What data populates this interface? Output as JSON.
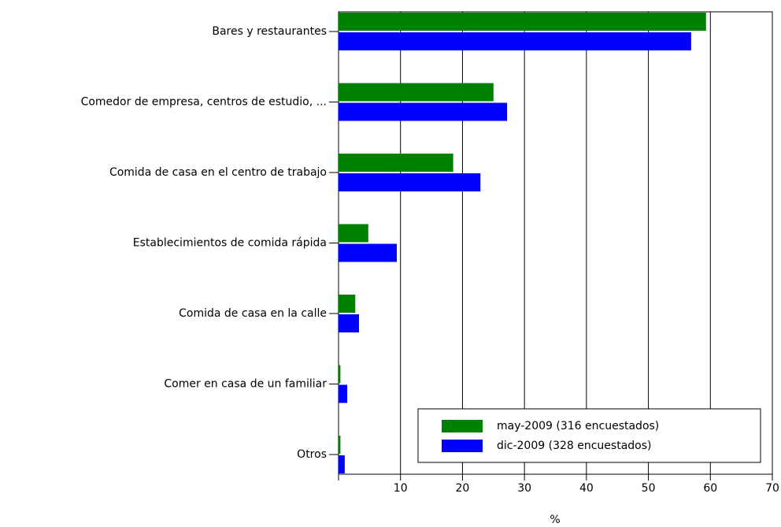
{
  "chart_data": {
    "type": "hbar",
    "categories": [
      "Bares y restaurantes",
      "Comedor de empresa, centros de estudio, ...",
      "Comida de casa en el centro de trabajo",
      "Establecimientos de comida rápida",
      "Comida de casa en la calle",
      "Comer en casa de un familiar",
      "Otros"
    ],
    "series": [
      {
        "name": "may-2009 (316 encuestados)",
        "color": "#008000",
        "values": [
          59.3,
          25.0,
          18.5,
          4.8,
          2.7,
          0.3,
          0.3
        ]
      },
      {
        "name": "dic-2009 (328 encuestados)",
        "color": "#0000ff",
        "values": [
          56.9,
          27.2,
          22.9,
          9.4,
          3.3,
          1.4,
          1.0
        ]
      }
    ],
    "xlabel": "%",
    "xlim": [
      0,
      70
    ],
    "xticks": [
      10,
      20,
      30,
      40,
      50,
      60,
      70
    ],
    "grid": true,
    "legend": "lower right"
  }
}
